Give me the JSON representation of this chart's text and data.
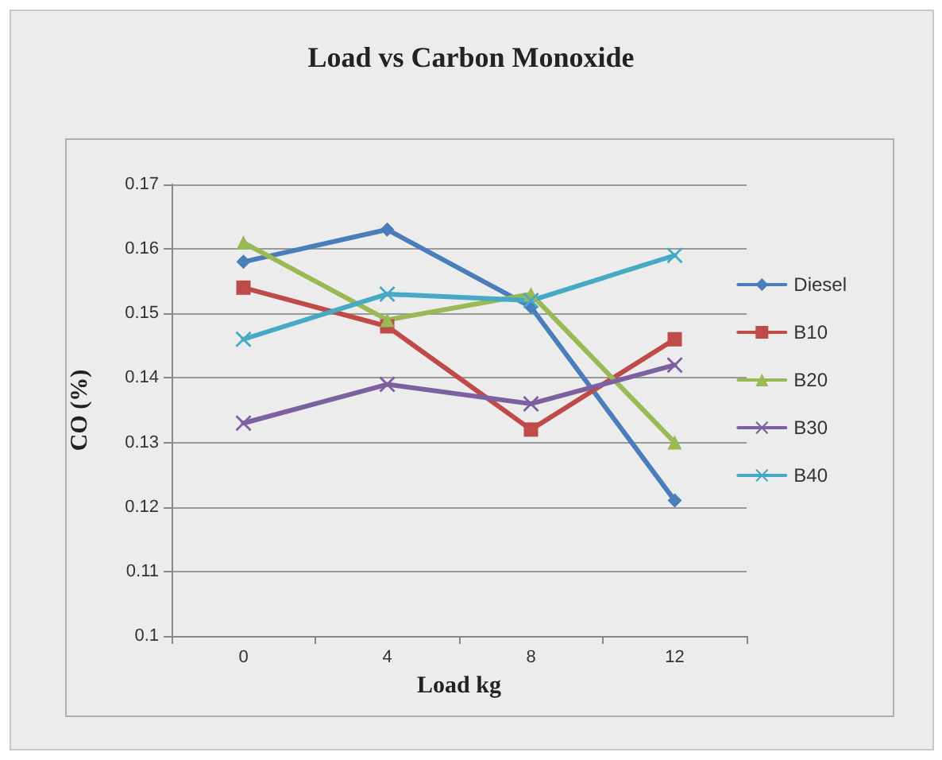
{
  "chart_data": {
    "type": "line",
    "title": "Load vs Carbon Monoxide",
    "xlabel": "Load kg",
    "ylabel": "CO (%)",
    "categories": [
      "0",
      "4",
      "8",
      "12"
    ],
    "ylim": [
      0.1,
      0.17
    ],
    "yticks": [
      0.1,
      0.11,
      0.12,
      0.13,
      0.14,
      0.15,
      0.16,
      0.17
    ],
    "grid": "y",
    "legend": "right",
    "line_style": "solid",
    "series": [
      {
        "name": "Diesel",
        "color": "#4a7ebb",
        "marker": "diamond",
        "values": [
          0.158,
          0.163,
          0.151,
          0.121
        ]
      },
      {
        "name": "B10",
        "color": "#be4b48",
        "marker": "square",
        "values": [
          0.154,
          0.148,
          0.132,
          0.146
        ]
      },
      {
        "name": "B20",
        "color": "#98b954",
        "marker": "triangle",
        "values": [
          0.161,
          0.149,
          0.153,
          0.13
        ]
      },
      {
        "name": "B30",
        "color": "#7d60a0",
        "marker": "cross",
        "values": [
          0.133,
          0.139,
          0.136,
          0.142
        ]
      },
      {
        "name": "B40",
        "color": "#46aac5",
        "marker": "cross",
        "values": [
          0.146,
          0.153,
          0.152,
          0.159
        ]
      }
    ]
  }
}
